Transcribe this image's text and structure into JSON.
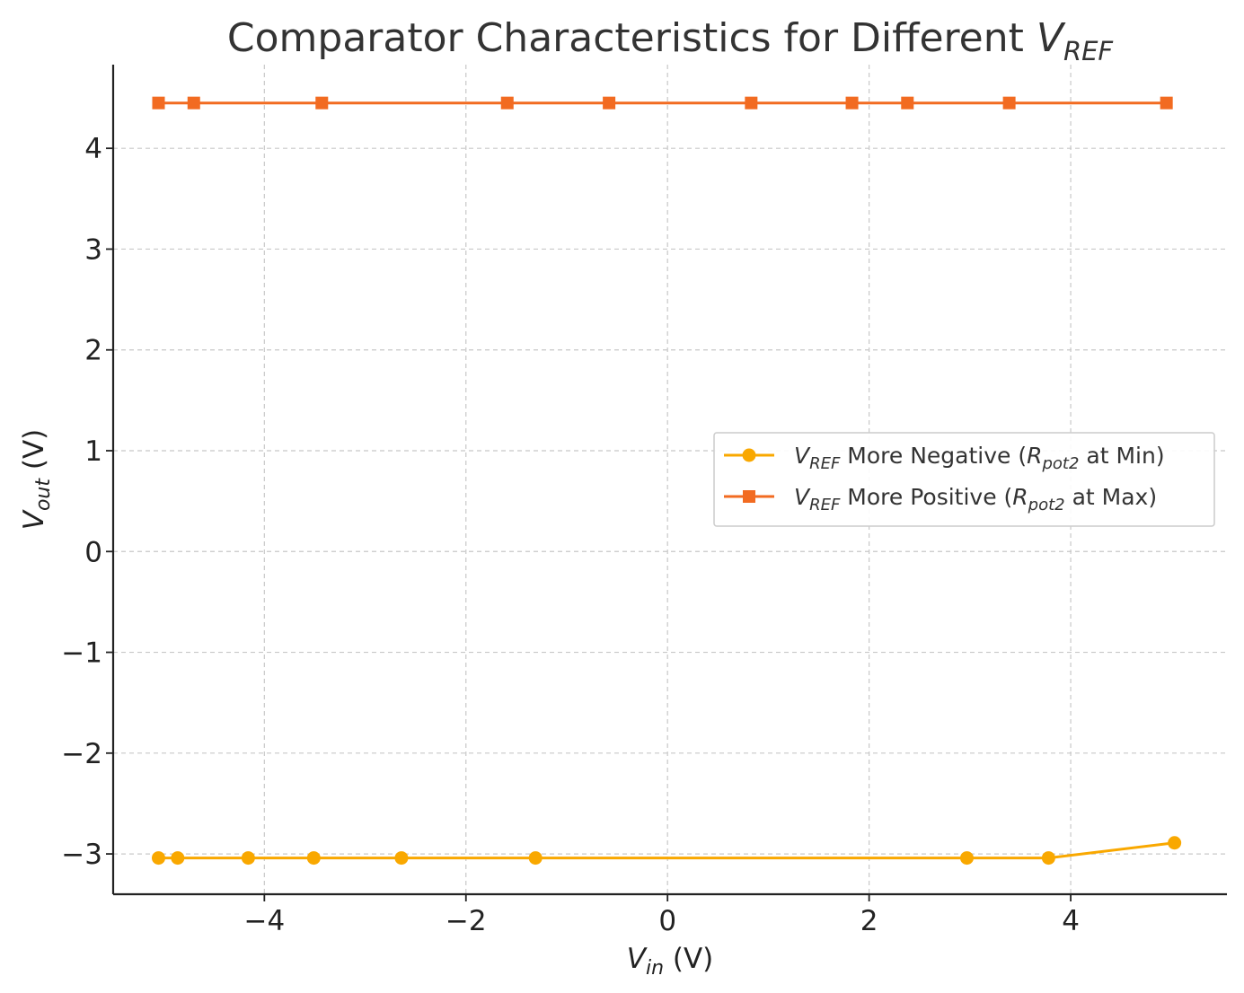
{
  "chart_data": {
    "type": "line",
    "title": {
      "main": "Comparator Characteristics for Different ",
      "var": "V",
      "sub": "REF"
    },
    "xlabel": {
      "var": "V",
      "sub": "in",
      "unit": " (V)"
    },
    "ylabel": {
      "var": "V",
      "sub": "out",
      "unit": " (V)"
    },
    "xlim": [
      -5.5,
      5.55
    ],
    "ylim": [
      -3.4,
      4.83
    ],
    "xticks": [
      -4,
      -2,
      0,
      2,
      4
    ],
    "yticks": [
      -3,
      -2,
      -1,
      0,
      1,
      2,
      3,
      4
    ],
    "grid": true,
    "legend_position": "center-right",
    "series": [
      {
        "legend": {
          "var": "V",
          "sub": "REF",
          "mid": " More Negative (",
          "rvar": "R",
          "rsub": "pot2",
          "end": " at Min)"
        },
        "color": "#F9A800",
        "marker": "circle",
        "x": [
          -5.05,
          -4.86,
          -4.16,
          -3.51,
          -2.64,
          -1.31,
          2.97,
          3.78,
          5.03
        ],
        "y": [
          -3.04,
          -3.04,
          -3.04,
          -3.04,
          -3.04,
          -3.04,
          -3.04,
          -3.04,
          -2.89
        ]
      },
      {
        "legend": {
          "var": "V",
          "sub": "REF",
          "mid": " More Positive (",
          "rvar": "R",
          "rsub": "pot2",
          "end": " at Max)"
        },
        "color": "#F26B21",
        "marker": "square",
        "x": [
          -5.05,
          -4.7,
          -3.43,
          -1.59,
          -0.58,
          0.83,
          1.83,
          2.38,
          3.39,
          4.95
        ],
        "y": [
          4.45,
          4.45,
          4.45,
          4.45,
          4.45,
          4.45,
          4.45,
          4.45,
          4.45,
          4.45
        ]
      }
    ]
  }
}
